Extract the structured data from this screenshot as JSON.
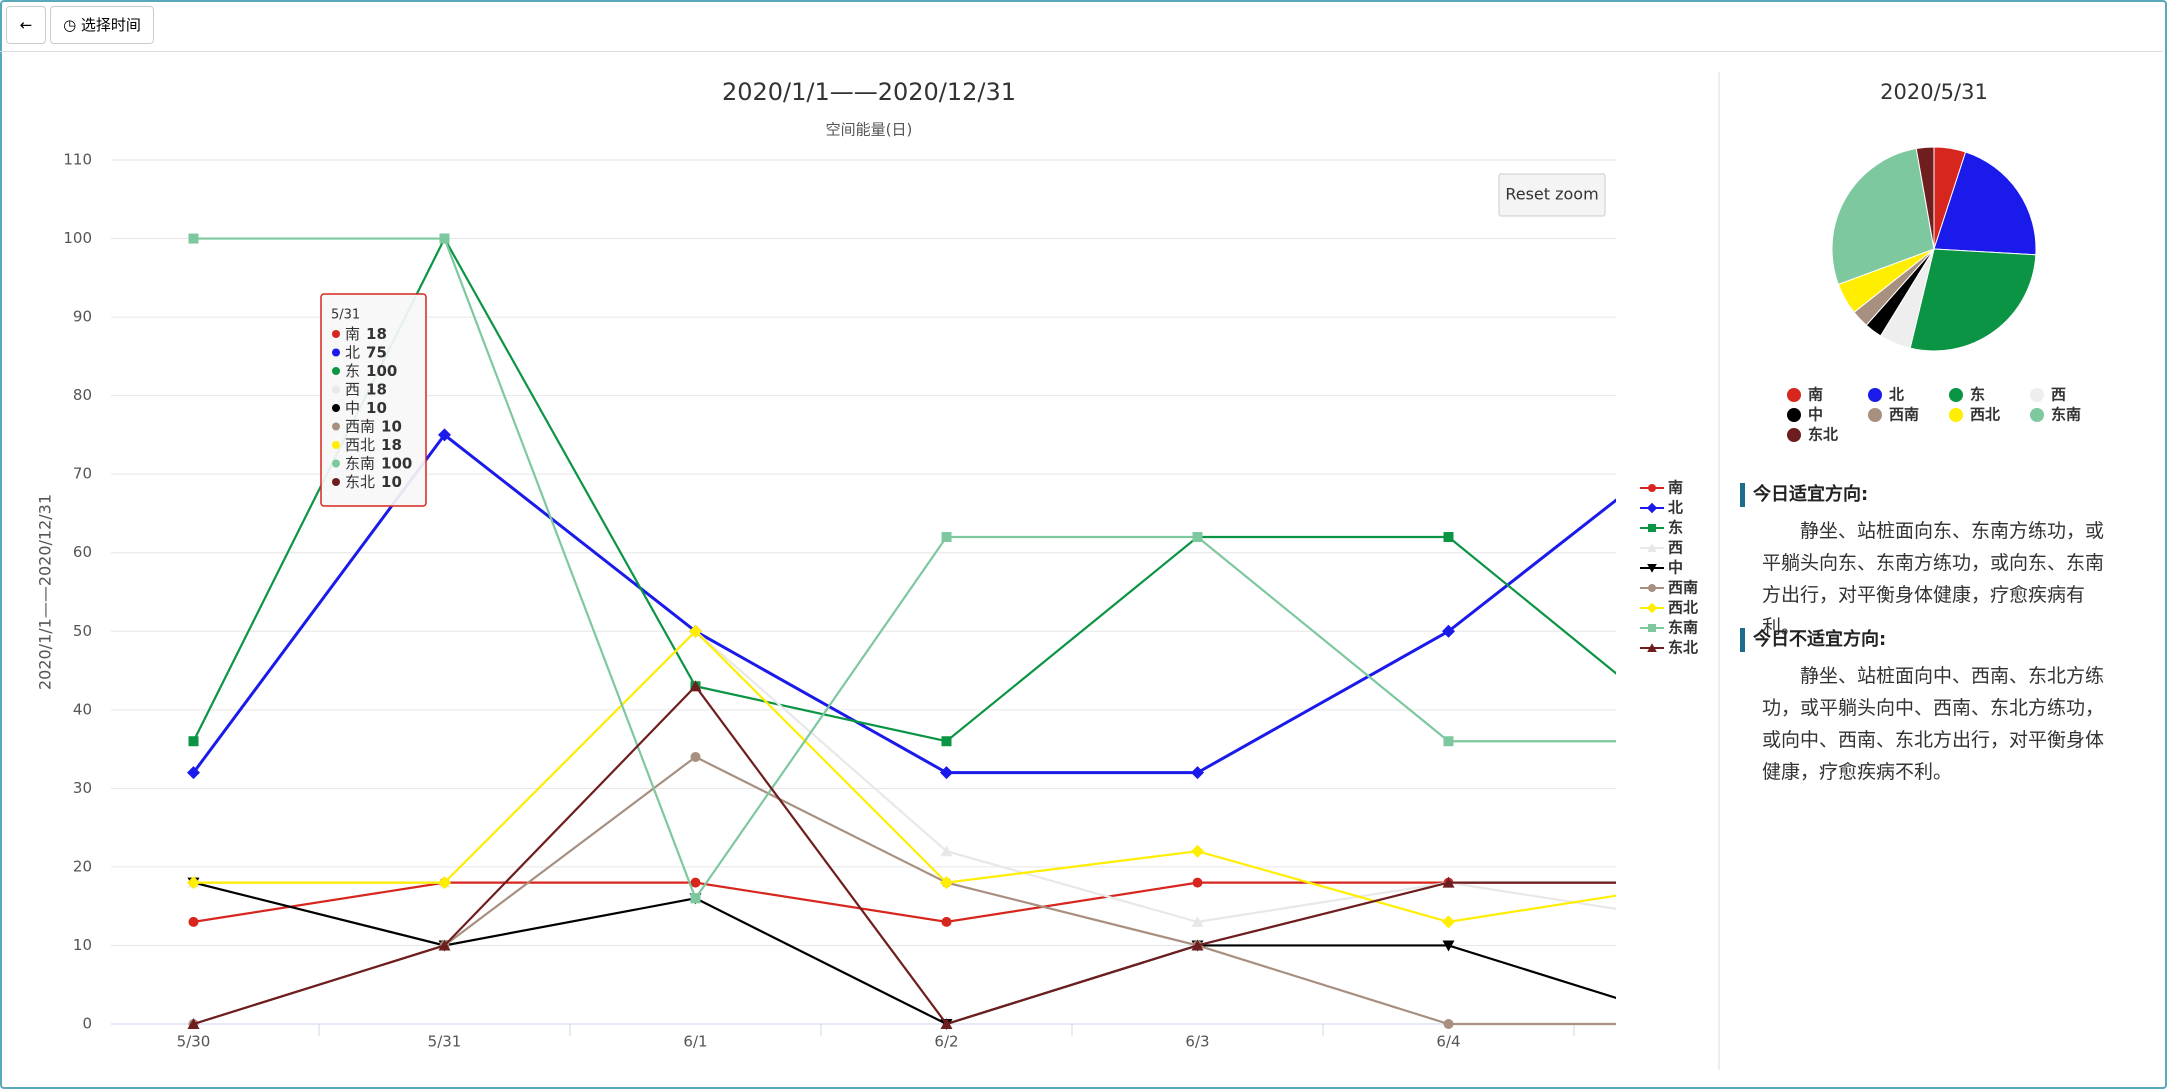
{
  "toolbar": {
    "time_button": "选择时间"
  },
  "chart_data": [
    {
      "type": "line",
      "title": "2020/1/1——2020/12/31",
      "subtitle": "空间能量(日)",
      "y_axis_label": "2020/1/1——2020/12/31",
      "reset_button": "Reset zoom",
      "categories": [
        "5/30",
        "5/31",
        "6/1",
        "6/2",
        "6/3",
        "6/4",
        null
      ],
      "ylim": [
        0,
        110
      ],
      "yticks": [
        0,
        10,
        20,
        30,
        40,
        50,
        60,
        70,
        80,
        90,
        100,
        110
      ],
      "grid": true,
      "legend": "right",
      "series": [
        {
          "name": "南",
          "color": "#d7261e",
          "marker": "circle",
          "values": [
            13,
            18,
            18,
            13,
            18,
            18,
            18
          ]
        },
        {
          "name": "北",
          "color": "#1a1aeb",
          "marker": "diamond",
          "values": [
            32,
            75,
            50,
            32,
            32,
            50,
            75
          ]
        },
        {
          "name": "东",
          "color": "#0b9444",
          "marker": "square",
          "values": [
            36,
            100,
            43,
            36,
            62,
            62,
            36
          ]
        },
        {
          "name": "西",
          "color": "#e8e8e8",
          "marker": "triangle",
          "values": [
            18,
            18,
            50,
            22,
            13,
            18,
            13
          ]
        },
        {
          "name": "中",
          "color": "#000000",
          "marker": "triangle-down",
          "values": [
            18,
            10,
            16,
            0,
            10,
            10,
            0
          ]
        },
        {
          "name": "西南",
          "color": "#a89080",
          "marker": "circle",
          "values": [
            0,
            10,
            34,
            18,
            10,
            0,
            0
          ]
        },
        {
          "name": "西北",
          "color": "#ffee00",
          "marker": "diamond",
          "values": [
            18,
            18,
            50,
            18,
            22,
            13,
            18
          ]
        },
        {
          "name": "东南",
          "color": "#7ec8a0",
          "marker": "square",
          "values": [
            100,
            100,
            16,
            62,
            62,
            36,
            36
          ]
        },
        {
          "name": "东北",
          "color": "#6e1e1e",
          "marker": "triangle",
          "values": [
            0,
            10,
            43,
            0,
            10,
            18,
            18
          ]
        }
      ],
      "tooltip": {
        "category_index": 1
      }
    },
    {
      "type": "pie",
      "title": "2020/5/31",
      "labels": [
        "南",
        "北",
        "东",
        "西",
        "中",
        "西南",
        "西北",
        "东南",
        "东北"
      ],
      "values": [
        18,
        75,
        100,
        18,
        10,
        10,
        18,
        100,
        10
      ],
      "colors": [
        "#d7261e",
        "#1a1aeb",
        "#0b9444",
        "#eeeeee",
        "#000000",
        "#a89080",
        "#ffee00",
        "#7ec8a0",
        "#6e1e1e"
      ]
    }
  ],
  "advice": {
    "good_title": "今日适宜方向:",
    "good_text": "静坐、站桩面向东、东南方练功，或平躺头向东、东南方练功，或向东、东南方出行，对平衡身体健康，疗愈疾病有利。",
    "bad_title": "今日不适宜方向:",
    "bad_text": "静坐、站桩面向中、西南、东北方练功，或平躺头向中、西南、东北方练功，或向中、西南、东北方出行，对平衡身体健康，疗愈疾病不利。"
  }
}
